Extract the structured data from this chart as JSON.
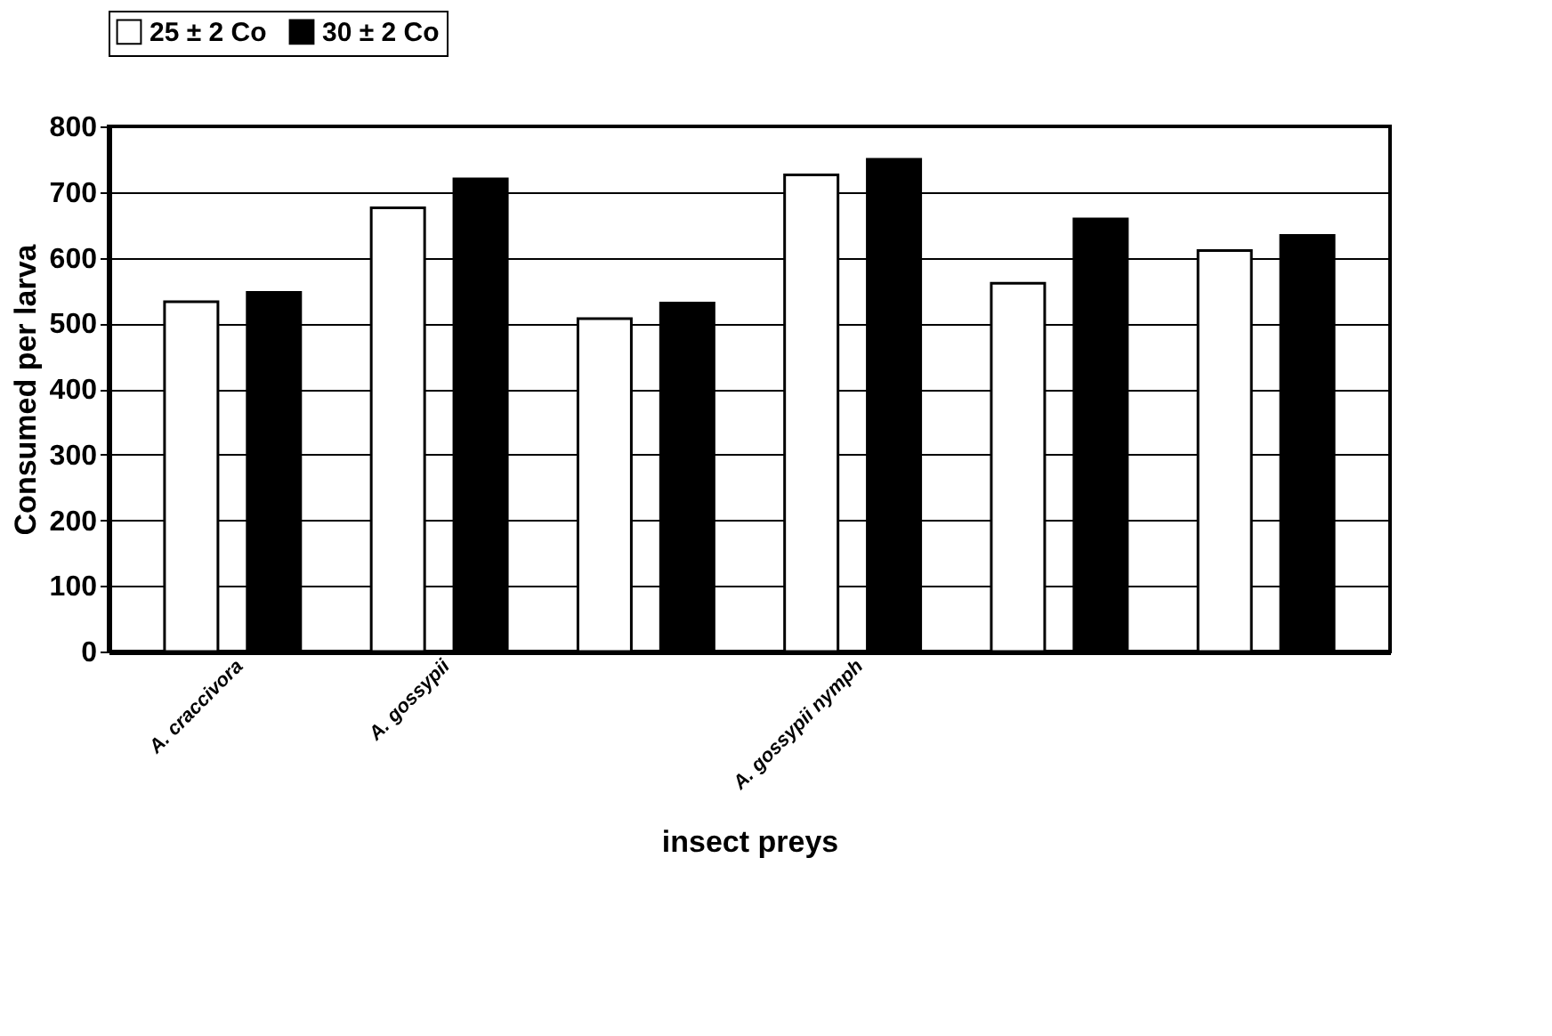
{
  "chart_data": {
    "type": "bar",
    "xlabel": "insect preys",
    "ylabel": "Consumed per larva",
    "categories": [
      "A. craccivora",
      "A. gossypii",
      null,
      "A. gossypii nymph",
      null,
      null
    ],
    "series": [
      {
        "name": "25 ± 2 Co",
        "color": "#ffffff",
        "values": [
          533,
          676,
          507,
          726,
          561,
          611
        ]
      },
      {
        "name": "30 ± 2 Co",
        "color": "#000000",
        "values": [
          547,
          720,
          531,
          750,
          659,
          634
        ]
      }
    ],
    "ylim": [
      0,
      800
    ],
    "yticks": [
      0,
      100,
      200,
      300,
      400,
      500,
      600,
      700,
      800
    ],
    "grid": "y",
    "legend": "top"
  }
}
